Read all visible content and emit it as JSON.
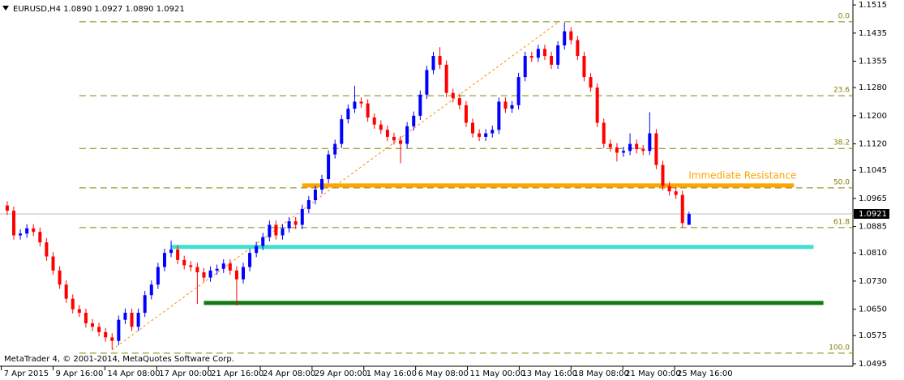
{
  "chart_data": {
    "type": "candlestick",
    "header": "EURUSD,H4  1.0890 1.0927 1.0890 1.0921",
    "copyright": "MetaTrader 4, © 2001-2014, MetaQuotes Software Corp.",
    "up_color": "#0000ff",
    "down_color": "#ff0000",
    "open": [
      1.0945,
      1.093,
      1.086,
      1.0865,
      1.088,
      1.087,
      1.084,
      1.08,
      1.076,
      1.072,
      1.068,
      1.065,
      1.064,
      1.061,
      1.06,
      1.0585,
      1.057,
      1.056,
      1.062,
      1.064,
      1.06,
      1.064,
      1.069,
      1.072,
      1.077,
      1.081,
      1.082,
      1.079,
      1.0775,
      1.077,
      1.0755,
      1.074,
      1.076,
      1.0765,
      1.078,
      1.076,
      1.0735,
      1.077,
      1.081,
      1.083,
      1.0855,
      1.089,
      1.086,
      1.088,
      1.09,
      1.089,
      1.0935,
      1.096,
      1.099,
      1.102,
      1.109,
      1.112,
      1.119,
      1.122,
      1.124,
      1.1235,
      1.1195,
      1.1175,
      1.116,
      1.114,
      1.113,
      1.112,
      1.117,
      1.12,
      1.126,
      1.133,
      1.137,
      1.1345,
      1.1265,
      1.125,
      1.123,
      1.118,
      1.115,
      1.114,
      1.115,
      1.116,
      1.124,
      1.122,
      1.123,
      1.131,
      1.137,
      1.1365,
      1.139,
      1.137,
      1.1345,
      1.14,
      1.144,
      1.1415,
      1.137,
      1.131,
      1.128,
      1.118,
      1.112,
      1.111,
      1.1095,
      1.11,
      1.112,
      1.1105,
      1.11,
      1.115,
      1.106,
      1.1,
      1.0985,
      1.0975,
      1.089
    ],
    "high": [
      1.0957,
      1.0942,
      1.0877,
      1.0892,
      1.0892,
      1.0882,
      1.0852,
      1.0812,
      1.0772,
      1.0732,
      1.0692,
      1.0662,
      1.0652,
      1.0622,
      1.0612,
      1.0597,
      1.0582,
      1.0632,
      1.0652,
      1.0652,
      1.0652,
      1.0702,
      1.0732,
      1.0782,
      1.0822,
      1.0845,
      1.0832,
      1.0802,
      1.0787,
      1.0782,
      1.0767,
      1.0772,
      1.0777,
      1.0792,
      1.0792,
      1.0772,
      1.0782,
      1.0822,
      1.0842,
      1.0867,
      1.0902,
      1.0902,
      1.0892,
      1.0912,
      1.0912,
      1.0947,
      1.0972,
      1.1002,
      1.1032,
      1.1102,
      1.1132,
      1.1202,
      1.1232,
      1.1285,
      1.1252,
      1.1247,
      1.1207,
      1.1187,
      1.1172,
      1.1152,
      1.1142,
      1.1182,
      1.1212,
      1.1272,
      1.1342,
      1.1382,
      1.1395,
      1.1357,
      1.1277,
      1.1262,
      1.1242,
      1.1192,
      1.1162,
      1.1162,
      1.1172,
      1.1252,
      1.1252,
      1.1242,
      1.1322,
      1.1382,
      1.1382,
      1.1402,
      1.1402,
      1.1382,
      1.1412,
      1.1465,
      1.1452,
      1.1427,
      1.1382,
      1.1322,
      1.1292,
      1.1192,
      1.1132,
      1.1122,
      1.1112,
      1.115,
      1.1132,
      1.1117,
      1.121,
      1.1162,
      1.1072,
      1.1012,
      1.0997,
      1.0987,
      1.0927
    ],
    "low": [
      1.0918,
      1.0848,
      1.0848,
      1.0853,
      1.0858,
      1.0828,
      1.0788,
      1.0748,
      1.0708,
      1.0668,
      1.0638,
      1.0628,
      1.0598,
      1.0588,
      1.0573,
      1.0558,
      1.0535,
      1.0548,
      1.0608,
      1.0588,
      1.0588,
      1.0628,
      1.0678,
      1.0708,
      1.0758,
      1.0798,
      1.0778,
      1.0763,
      1.0758,
      1.0665,
      1.0728,
      1.0728,
      1.0748,
      1.0753,
      1.0748,
      1.066,
      1.0723,
      1.0758,
      1.0798,
      1.0818,
      1.0843,
      1.0848,
      1.0848,
      1.0868,
      1.0878,
      1.0878,
      1.0923,
      1.0948,
      1.0978,
      1.1008,
      1.1078,
      1.1108,
      1.1178,
      1.1208,
      1.1223,
      1.1183,
      1.1163,
      1.1148,
      1.1128,
      1.1118,
      1.1065,
      1.1108,
      1.1158,
      1.1188,
      1.1248,
      1.1318,
      1.1333,
      1.1253,
      1.1238,
      1.1218,
      1.1168,
      1.1138,
      1.1128,
      1.1128,
      1.1138,
      1.1148,
      1.1208,
      1.1208,
      1.1218,
      1.1298,
      1.1353,
      1.1353,
      1.1358,
      1.1333,
      1.1333,
      1.1388,
      1.1403,
      1.1358,
      1.1298,
      1.1268,
      1.1168,
      1.1108,
      1.1098,
      1.107,
      1.1083,
      1.1088,
      1.1093,
      1.1088,
      1.1088,
      1.1048,
      1.0988,
      1.0973,
      1.0963,
      1.0883,
      1.089
    ],
    "close": [
      1.093,
      1.086,
      1.0865,
      1.088,
      1.087,
      1.084,
      1.08,
      1.076,
      1.072,
      1.068,
      1.065,
      1.064,
      1.061,
      1.06,
      1.0585,
      1.057,
      1.056,
      1.062,
      1.064,
      1.06,
      1.064,
      1.069,
      1.072,
      1.077,
      1.081,
      1.082,
      1.079,
      1.0775,
      1.077,
      1.0755,
      1.074,
      1.076,
      1.0765,
      1.078,
      1.076,
      1.0735,
      1.077,
      1.081,
      1.083,
      1.0855,
      1.089,
      1.086,
      1.088,
      1.09,
      1.089,
      1.0935,
      1.096,
      1.099,
      1.102,
      1.109,
      1.112,
      1.119,
      1.122,
      1.124,
      1.1235,
      1.1195,
      1.1175,
      1.116,
      1.114,
      1.113,
      1.112,
      1.117,
      1.12,
      1.126,
      1.133,
      1.137,
      1.1345,
      1.1265,
      1.125,
      1.123,
      1.118,
      1.115,
      1.114,
      1.115,
      1.116,
      1.124,
      1.122,
      1.123,
      1.131,
      1.137,
      1.1365,
      1.139,
      1.137,
      1.1345,
      1.14,
      1.144,
      1.1415,
      1.137,
      1.131,
      1.128,
      1.118,
      1.112,
      1.111,
      1.1095,
      1.11,
      1.112,
      1.1105,
      1.11,
      1.115,
      1.106,
      1.1,
      1.0985,
      1.0975,
      1.0895,
      1.0921
    ],
    "xlim": [
      -1.1,
      129
    ],
    "xticks": [
      {
        "value": -0.9,
        "label": "7 Apr 2015"
      },
      {
        "value": 7,
        "label": "9 Apr 16:00"
      },
      {
        "value": 14.9,
        "label": "14 Apr 08:00"
      },
      {
        "value": 22.8,
        "label": "17 Apr 00:00"
      },
      {
        "value": 30.7,
        "label": "21 Apr 16:00"
      },
      {
        "value": 38.6,
        "label": "24 Apr 08:00"
      },
      {
        "value": 46.5,
        "label": "29 Apr 00:00"
      },
      {
        "value": 54.4,
        "label": "1 May 16:00"
      },
      {
        "value": 62.3,
        "label": "6 May 08:00"
      },
      {
        "value": 70.2,
        "label": "11 May 00:00"
      },
      {
        "value": 78.1,
        "label": "13 May 16:00"
      },
      {
        "value": 86,
        "label": "18 May 08:00"
      },
      {
        "value": 93.9,
        "label": "21 May 00:00"
      },
      {
        "value": 101.8,
        "label": "25 May 16:00"
      }
    ],
    "ylim": [
      1.0488,
      1.1529
    ],
    "yticks": [
      1.1515,
      1.1435,
      1.1355,
      {
        "value": 1.128,
        "label": "1.1280"
      },
      {
        "value": 1.12,
        "label": "1.1200"
      },
      {
        "value": 1.112,
        "label": "1.1120"
      },
      1.1045,
      1.0965,
      1.0885,
      {
        "value": 1.081,
        "label": "1.0810"
      },
      {
        "value": 1.073,
        "label": "1.0730"
      },
      {
        "value": 1.065,
        "label": "1.0650"
      },
      1.0575,
      1.0495
    ],
    "last_price": {
      "value": 1.0921,
      "label": "1.0921"
    },
    "fib_color": "#808000",
    "fib_x_start": 11,
    "fib_levels": [
      {
        "label": "0.0",
        "value": 1.1467
      },
      {
        "label": "23.6",
        "value": 1.1257
      },
      {
        "label": "38.2",
        "value": 1.1107
      },
      {
        "label": "50.0",
        "value": 1.0995
      },
      {
        "label": "61.8",
        "value": 1.0882
      },
      {
        "label": "100.0",
        "value": 1.0525
      }
    ],
    "fib_anchor": {
      "x": [
        16,
        84
      ],
      "y": [
        1.0535,
        1.1465
      ],
      "color": "#ff8c00"
    },
    "levels": [
      {
        "value": 1.1002,
        "x": [
          45,
          120
        ],
        "color": "#ffa500"
      },
      {
        "value": 1.0827,
        "x": [
          25,
          123
        ],
        "color": "#40e0d0"
      },
      {
        "value": 1.0668,
        "x": [
          30,
          124.5
        ],
        "color": "#127a12"
      }
    ],
    "annotation": "Immediate Resistance",
    "annotation_color": "#ffa500"
  }
}
